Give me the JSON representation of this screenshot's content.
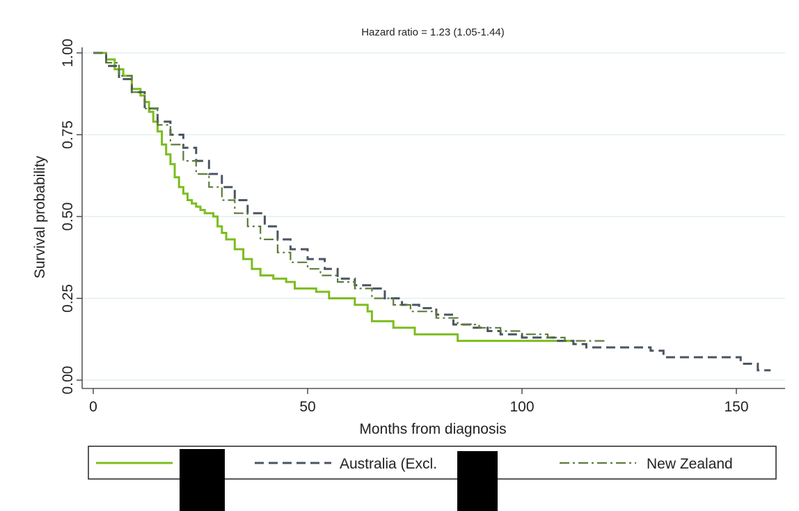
{
  "chart_data": {
    "type": "line",
    "title": "Hazard ratio = 1.23 (1.05-1.44)",
    "xlabel": "Months from diagnosis",
    "ylabel": "Survival probability",
    "xlim": [
      0,
      160
    ],
    "ylim": [
      0,
      1.0
    ],
    "x_ticks": [
      0,
      50,
      100,
      150
    ],
    "y_ticks": [
      0.0,
      0.25,
      0.5,
      0.75,
      1.0
    ],
    "y_tick_labels": [
      "0.00",
      "0.25",
      "0.50",
      "0.75",
      "1.00"
    ],
    "grid": true,
    "legend_position": "bottom",
    "series": [
      {
        "name": "",
        "color": "#7cbd1e",
        "style": "solid",
        "points": [
          [
            0,
            1.0
          ],
          [
            2,
            1.0
          ],
          [
            3,
            0.98
          ],
          [
            5,
            0.95
          ],
          [
            7,
            0.93
          ],
          [
            9,
            0.89
          ],
          [
            11,
            0.87
          ],
          [
            12,
            0.85
          ],
          [
            13,
            0.82
          ],
          [
            14,
            0.79
          ],
          [
            15,
            0.76
          ],
          [
            16,
            0.72
          ],
          [
            17,
            0.69
          ],
          [
            18,
            0.66
          ],
          [
            19,
            0.62
          ],
          [
            20,
            0.59
          ],
          [
            21,
            0.57
          ],
          [
            22,
            0.55
          ],
          [
            23,
            0.54
          ],
          [
            24,
            0.53
          ],
          [
            25,
            0.52
          ],
          [
            26,
            0.51
          ],
          [
            28,
            0.5
          ],
          [
            29,
            0.47
          ],
          [
            30,
            0.45
          ],
          [
            31,
            0.43
          ],
          [
            33,
            0.4
          ],
          [
            35,
            0.37
          ],
          [
            37,
            0.34
          ],
          [
            39,
            0.32
          ],
          [
            42,
            0.31
          ],
          [
            45,
            0.3
          ],
          [
            47,
            0.28
          ],
          [
            52,
            0.27
          ],
          [
            55,
            0.25
          ],
          [
            58,
            0.25
          ],
          [
            61,
            0.23
          ],
          [
            64,
            0.21
          ],
          [
            65,
            0.18
          ],
          [
            68,
            0.18
          ],
          [
            70,
            0.16
          ],
          [
            74,
            0.16
          ],
          [
            75,
            0.14
          ],
          [
            84,
            0.14
          ],
          [
            85,
            0.12
          ],
          [
            110,
            0.12
          ],
          [
            112,
            0.12
          ]
        ]
      },
      {
        "name": "Australia (Excl.",
        "color": "#4a5563",
        "style": "dash",
        "points": [
          [
            0,
            1.0
          ],
          [
            3,
            0.96
          ],
          [
            6,
            0.92
          ],
          [
            9,
            0.88
          ],
          [
            12,
            0.83
          ],
          [
            15,
            0.79
          ],
          [
            18,
            0.75
          ],
          [
            21,
            0.71
          ],
          [
            24,
            0.67
          ],
          [
            27,
            0.63
          ],
          [
            30,
            0.59
          ],
          [
            33,
            0.55
          ],
          [
            36,
            0.51
          ],
          [
            40,
            0.47
          ],
          [
            43,
            0.43
          ],
          [
            46,
            0.4
          ],
          [
            50,
            0.37
          ],
          [
            54,
            0.34
          ],
          [
            57,
            0.31
          ],
          [
            61,
            0.29
          ],
          [
            65,
            0.28
          ],
          [
            68,
            0.25
          ],
          [
            72,
            0.23
          ],
          [
            76,
            0.22
          ],
          [
            80,
            0.2
          ],
          [
            84,
            0.17
          ],
          [
            88,
            0.16
          ],
          [
            92,
            0.15
          ],
          [
            95,
            0.14
          ],
          [
            100,
            0.13
          ],
          [
            104,
            0.13
          ],
          [
            108,
            0.12
          ],
          [
            112,
            0.11
          ],
          [
            115,
            0.1
          ],
          [
            125,
            0.1
          ],
          [
            130,
            0.09
          ],
          [
            133,
            0.07
          ],
          [
            140,
            0.07
          ],
          [
            150,
            0.07
          ],
          [
            151,
            0.05
          ],
          [
            154,
            0.05
          ],
          [
            155,
            0.03
          ],
          [
            158,
            0.03
          ]
        ]
      },
      {
        "name": "New Zealand",
        "color": "#5d7b3a",
        "style": "dashdot",
        "points": [
          [
            0,
            1.0
          ],
          [
            3,
            0.97
          ],
          [
            6,
            0.93
          ],
          [
            9,
            0.88
          ],
          [
            12,
            0.83
          ],
          [
            15,
            0.78
          ],
          [
            18,
            0.72
          ],
          [
            21,
            0.67
          ],
          [
            24,
            0.63
          ],
          [
            27,
            0.59
          ],
          [
            30,
            0.55
          ],
          [
            33,
            0.51
          ],
          [
            36,
            0.47
          ],
          [
            39,
            0.43
          ],
          [
            43,
            0.39
          ],
          [
            46,
            0.36
          ],
          [
            50,
            0.34
          ],
          [
            53,
            0.32
          ],
          [
            57,
            0.3
          ],
          [
            61,
            0.28
          ],
          [
            65,
            0.25
          ],
          [
            70,
            0.23
          ],
          [
            74,
            0.21
          ],
          [
            80,
            0.19
          ],
          [
            85,
            0.17
          ],
          [
            90,
            0.16
          ],
          [
            95,
            0.15
          ],
          [
            100,
            0.14
          ],
          [
            106,
            0.13
          ],
          [
            110,
            0.12
          ],
          [
            115,
            0.12
          ],
          [
            120,
            0.12
          ]
        ]
      }
    ]
  }
}
